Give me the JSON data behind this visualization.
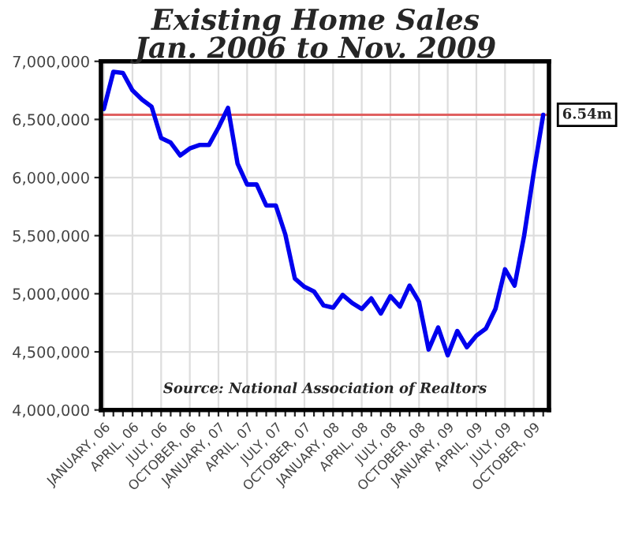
{
  "chart_data": {
    "type": "line",
    "title": "Existing Home Sales\nJan. 2006 to Nov. 2009",
    "categories": [
      "JANUARY, 06",
      null,
      null,
      "APRIL, 06",
      null,
      null,
      "JULY, 06",
      null,
      null,
      "OCTOBER, 06",
      null,
      null,
      "JANUARY, 07",
      null,
      null,
      "APRIL, 07",
      null,
      null,
      "JULY, 07",
      null,
      null,
      "OCTOBER, 07",
      null,
      null,
      "JANUARY, 08",
      null,
      null,
      "APRIL, 08",
      null,
      null,
      "JULY, 08",
      null,
      null,
      "OCTOBER, 08",
      null,
      null,
      "JANUARY, 09",
      null,
      null,
      "APRIL, 09",
      null,
      null,
      "JULY, 09",
      null,
      null,
      "OCTOBER, 09",
      null
    ],
    "series": [
      {
        "color": "#0000ee",
        "values": [
          6590000,
          6910000,
          6900000,
          6750000,
          6670000,
          6610000,
          6340000,
          6300000,
          6190000,
          6250000,
          6280000,
          6280000,
          6430000,
          6600000,
          6120000,
          5940000,
          5940000,
          5760000,
          5760000,
          5510000,
          5130000,
          5060000,
          5020000,
          4900000,
          4880000,
          4990000,
          4920000,
          4870000,
          4960000,
          4830000,
          4980000,
          4890000,
          5070000,
          4930000,
          4520000,
          4710000,
          4470000,
          4680000,
          4540000,
          4640000,
          4700000,
          4870000,
          5210000,
          5070000,
          5500000,
          6040000,
          6540000
        ]
      }
    ],
    "ylim": [
      4000000,
      7000000
    ],
    "yticks": [
      {
        "value": 4000000,
        "label": "4,000,000"
      },
      {
        "value": 4500000,
        "label": "4,500,000"
      },
      {
        "value": 5000000,
        "label": "5,000,000"
      },
      {
        "value": 5500000,
        "label": "5,500,000"
      },
      {
        "value": 6000000,
        "label": "6,000,000"
      },
      {
        "value": 6500000,
        "label": "6,500,000"
      },
      {
        "value": 7000000,
        "label": "7,000,000"
      }
    ],
    "ref_lines": [
      {
        "axis": "y",
        "value": 6540000,
        "label": "6.54m",
        "color": "#e06060"
      }
    ],
    "annotations": [
      "Source: National Association of Realtors"
    ],
    "grid": true,
    "legend": false,
    "marker": "none",
    "line_style": "solid"
  }
}
